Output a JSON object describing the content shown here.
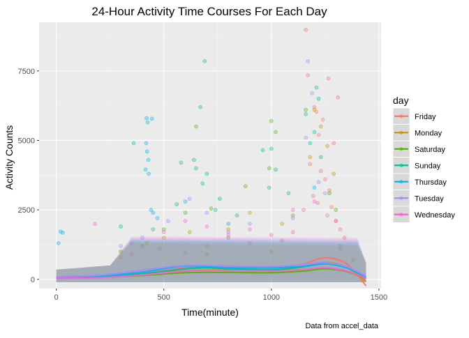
{
  "chart_data": {
    "type": "scatter",
    "title": "24-Hour Activity Time Courses For Each Day",
    "xlabel": "Time(minute)",
    "ylabel": "Activity Counts",
    "caption": "Data from accel_data",
    "xlim": [
      -80,
      1510
    ],
    "ylim": [
      -330,
      9250
    ],
    "xticks": [
      0,
      500,
      1000,
      1500
    ],
    "yticks": [
      0,
      2500,
      5000,
      7500
    ],
    "xtick_labels": [
      "0",
      "500",
      "1000",
      "1500"
    ],
    "ytick_labels": [
      "0",
      "2500",
      "5000",
      "7500"
    ],
    "grid": true,
    "legend": {
      "title": "day",
      "position": "right"
    },
    "point_alpha": 0.35,
    "series": [
      {
        "name": "Friday",
        "color": "#F8766D",
        "points": [
          [
            1160,
            8980
          ],
          [
            1170,
            7350
          ],
          [
            1265,
            7230
          ],
          [
            1310,
            6550
          ],
          [
            1200,
            6200
          ],
          [
            1210,
            6030
          ],
          [
            1240,
            5750
          ],
          [
            1220,
            5200
          ],
          [
            1290,
            4900
          ],
          [
            1180,
            4150
          ],
          [
            1230,
            3900
          ],
          [
            1250,
            3600
          ],
          [
            1270,
            3200
          ],
          [
            1195,
            3000
          ],
          [
            1215,
            2750
          ],
          [
            1280,
            2600
          ],
          [
            1150,
            2500
          ],
          [
            1260,
            2300
          ],
          [
            1300,
            2100
          ],
          [
            1100,
            1700
          ],
          [
            1050,
            1400
          ],
          [
            900,
            1300
          ],
          [
            700,
            1200
          ],
          [
            600,
            950
          ],
          [
            480,
            1100
          ],
          [
            350,
            900
          ],
          [
            1320,
            1800
          ],
          [
            1340,
            1500
          ]
        ],
        "trend": [
          [
            0,
            80
          ],
          [
            200,
            110
          ],
          [
            400,
            210
          ],
          [
            600,
            420
          ],
          [
            700,
            470
          ],
          [
            800,
            420
          ],
          [
            1000,
            380
          ],
          [
            1150,
            560
          ],
          [
            1250,
            780
          ],
          [
            1350,
            560
          ],
          [
            1440,
            -230
          ]
        ]
      },
      {
        "name": "Monday",
        "color": "#C49A00",
        "points": [
          [
            1200,
            6100
          ],
          [
            1230,
            5500
          ],
          [
            1260,
            4800
          ],
          [
            1180,
            4400
          ],
          [
            1290,
            3800
          ],
          [
            900,
            2400
          ],
          [
            1050,
            2000
          ],
          [
            800,
            1800
          ],
          [
            620,
            1700
          ],
          [
            500,
            1500
          ],
          [
            420,
            1300
          ],
          [
            1320,
            1100
          ],
          [
            300,
            800
          ],
          [
            700,
            900
          ],
          [
            1000,
            1000
          ],
          [
            1380,
            700
          ]
        ],
        "trend": [
          [
            0,
            60
          ],
          [
            200,
            90
          ],
          [
            400,
            170
          ],
          [
            600,
            310
          ],
          [
            800,
            340
          ],
          [
            1000,
            330
          ],
          [
            1150,
            450
          ],
          [
            1250,
            610
          ],
          [
            1350,
            440
          ],
          [
            1440,
            -80
          ]
        ]
      },
      {
        "name": "Saturday",
        "color": "#53B400",
        "points": [
          [
            650,
            5500
          ],
          [
            1000,
            5700
          ],
          [
            1020,
            5300
          ],
          [
            990,
            4000
          ],
          [
            880,
            3350
          ],
          [
            720,
            2550
          ],
          [
            1160,
            6100
          ],
          [
            600,
            2400
          ],
          [
            1100,
            2300
          ],
          [
            1270,
            3100
          ],
          [
            1300,
            2500
          ],
          [
            500,
            1800
          ],
          [
            400,
            1200
          ],
          [
            300,
            1000
          ],
          [
            800,
            1500
          ]
        ],
        "trend": [
          [
            0,
            40
          ],
          [
            200,
            70
          ],
          [
            400,
            140
          ],
          [
            600,
            240
          ],
          [
            800,
            250
          ],
          [
            1000,
            240
          ],
          [
            1150,
            300
          ],
          [
            1250,
            380
          ],
          [
            1350,
            280
          ],
          [
            1440,
            30
          ]
        ]
      },
      {
        "name": "Sunday",
        "color": "#00C094",
        "points": [
          [
            1210,
            6900
          ],
          [
            1220,
            6500
          ],
          [
            690,
            7850
          ],
          [
            670,
            6200
          ],
          [
            580,
            4200
          ],
          [
            640,
            4300
          ],
          [
            700,
            3800
          ],
          [
            760,
            2900
          ],
          [
            680,
            3450
          ],
          [
            560,
            2700
          ],
          [
            1000,
            4700
          ],
          [
            960,
            4650
          ],
          [
            990,
            3300
          ],
          [
            1020,
            3950
          ],
          [
            1160,
            5950
          ],
          [
            1200,
            5300
          ],
          [
            1180,
            4900
          ],
          [
            1230,
            4400
          ],
          [
            650,
            4000
          ],
          [
            740,
            2500
          ],
          [
            840,
            2300
          ],
          [
            300,
            1900
          ],
          [
            450,
            1800
          ],
          [
            1080,
            3100
          ]
        ],
        "trend": [
          [
            0,
            50
          ],
          [
            200,
            80
          ],
          [
            400,
            200
          ],
          [
            600,
            380
          ],
          [
            700,
            420
          ],
          [
            800,
            380
          ],
          [
            1000,
            340
          ],
          [
            1150,
            460
          ],
          [
            1250,
            560
          ],
          [
            1350,
            420
          ],
          [
            1440,
            60
          ]
        ]
      },
      {
        "name": "Thursday",
        "color": "#00B6EB",
        "points": [
          [
            420,
            5800
          ],
          [
            425,
            5650
          ],
          [
            445,
            5780
          ],
          [
            418,
            4900
          ],
          [
            422,
            4600
          ],
          [
            428,
            4300
          ],
          [
            415,
            3950
          ],
          [
            430,
            3800
          ],
          [
            450,
            2400
          ],
          [
            20,
            1720
          ],
          [
            30,
            1680
          ],
          [
            10,
            1300
          ],
          [
            360,
            4900
          ],
          [
            440,
            2500
          ],
          [
            470,
            2200
          ],
          [
            600,
            2800
          ],
          [
            1200,
            3300
          ],
          [
            800,
            2000
          ]
        ],
        "trend": [
          [
            0,
            70
          ],
          [
            200,
            120
          ],
          [
            400,
            260
          ],
          [
            600,
            480
          ],
          [
            800,
            420
          ],
          [
            1000,
            420
          ],
          [
            1150,
            470
          ],
          [
            1250,
            560
          ],
          [
            1350,
            420
          ],
          [
            1440,
            100
          ]
        ]
      },
      {
        "name": "Tuesday",
        "color": "#A58AFF",
        "points": [
          [
            1170,
            7850
          ],
          [
            1190,
            6700
          ],
          [
            1160,
            5100
          ],
          [
            620,
            2900
          ],
          [
            700,
            2400
          ],
          [
            520,
            2100
          ],
          [
            1220,
            3500
          ],
          [
            1250,
            3100
          ],
          [
            900,
            2000
          ],
          [
            1100,
            2200
          ],
          [
            400,
            1500
          ],
          [
            300,
            1200
          ],
          [
            800,
            1700
          ],
          [
            1320,
            1200
          ]
        ],
        "trend": [
          [
            0,
            90
          ],
          [
            200,
            150
          ],
          [
            400,
            330
          ],
          [
            600,
            500
          ],
          [
            800,
            480
          ],
          [
            1000,
            460
          ],
          [
            1150,
            540
          ],
          [
            1250,
            600
          ],
          [
            1350,
            460
          ],
          [
            1440,
            120
          ]
        ]
      },
      {
        "name": "Wednesday",
        "color": "#FB61D7",
        "points": [
          [
            180,
            2000
          ],
          [
            600,
            2100
          ],
          [
            1100,
            2500
          ],
          [
            1300,
            2100
          ],
          [
            700,
            1900
          ],
          [
            500,
            1700
          ],
          [
            900,
            1800
          ],
          [
            1200,
            2800
          ],
          [
            350,
            1300
          ],
          [
            1000,
            1600
          ],
          [
            800,
            1600
          ]
        ],
        "trend": [
          [
            0,
            40
          ],
          [
            200,
            60
          ],
          [
            400,
            160
          ],
          [
            600,
            300
          ],
          [
            800,
            320
          ],
          [
            1000,
            300
          ],
          [
            1150,
            360
          ],
          [
            1250,
            420
          ],
          [
            1350,
            300
          ],
          [
            1440,
            40
          ]
        ]
      }
    ]
  }
}
